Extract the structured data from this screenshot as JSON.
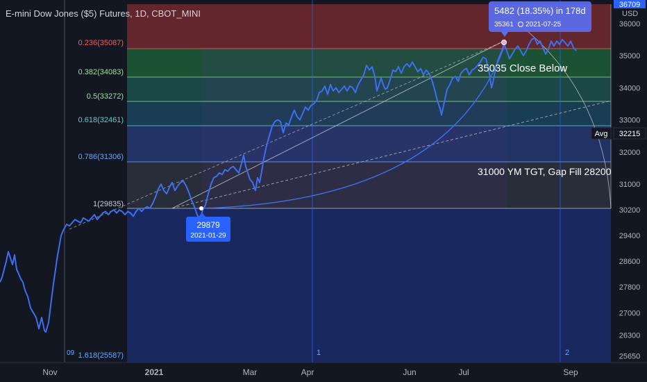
{
  "title": "E-mini Dow Jones ($5) Futures, 1D, CBOT_MINI",
  "currency": "USD",
  "colors": {
    "background": "#131722",
    "price_line": "#3d6ff0",
    "zone_red": "#8a2b30",
    "zone_green": "#1e6a3c",
    "zone_teal": "#1d5d61",
    "zone_blue": "#243e86",
    "zone_below": "#1a2a66",
    "fib_label_red": "#f0605a",
    "fib_label_green": "#9fe29a",
    "fib_label_teal": "#5bd1c8",
    "fib_label_blue": "#6aa7ff",
    "callout": "#2962ff"
  },
  "fib_levels": [
    {
      "ratio": "0.236",
      "price": 35087,
      "label": "0.236(35087)"
    },
    {
      "ratio": "0.382",
      "price": 34083,
      "label": "0.382(34083)"
    },
    {
      "ratio": "0.5",
      "price": 33272,
      "label": "0.5(33272)"
    },
    {
      "ratio": "0.618",
      "price": 32461,
      "label": "0.618(32461)"
    },
    {
      "ratio": "0.786",
      "price": 31306,
      "label": "0.786(31306)"
    },
    {
      "ratio": "1",
      "price": 29835,
      "label": "1(29835)"
    },
    {
      "ratio": "1.618",
      "price": 25587,
      "label": "1.618(25587)"
    }
  ],
  "annotations": {
    "close_below": "35035 Close Below",
    "target": "31000 YM TGT, Gap Fill 28200",
    "low_price": "29879",
    "low_date": "2021-01-29",
    "range_label": "5482 (18.35%) in 178d",
    "high_price": "35361",
    "high_date": "2021-07-25",
    "avg_label": "Avg",
    "avg_value": "32215",
    "top_price_badge": "36709",
    "marker_1": "1",
    "marker_2": "2",
    "marker_left": "09"
  },
  "chart_data": {
    "type": "line",
    "title": "E-mini Dow Jones ($5) Futures, 1D, CBOT_MINI",
    "y_ticks": [
      36000,
      35000,
      34000,
      33000,
      32000,
      31000,
      30200,
      29400,
      28600,
      27800,
      27000,
      26300,
      25650
    ],
    "ylim": [
      25450,
      36600
    ],
    "x_ticks": [
      "Nov",
      "2021",
      "Mar",
      "Apr",
      "Jun",
      "Jul",
      "Sep"
    ],
    "series": [
      {
        "values": [
          [
            0,
            27950
          ],
          [
            3,
            28100
          ],
          [
            6,
            28350
          ],
          [
            9,
            28600
          ],
          [
            12,
            28900
          ],
          [
            15,
            28700
          ],
          [
            18,
            28500
          ],
          [
            21,
            28800
          ],
          [
            24,
            28350
          ],
          [
            27,
            28200
          ],
          [
            30,
            28050
          ],
          [
            33,
            27950
          ],
          [
            36,
            27700
          ],
          [
            40,
            27500
          ],
          [
            44,
            27150
          ],
          [
            48,
            27000
          ],
          [
            52,
            26850
          ],
          [
            56,
            26500
          ],
          [
            60,
            26850
          ],
          [
            64,
            26450
          ],
          [
            66,
            26400
          ],
          [
            70,
            26700
          ],
          [
            74,
            27400
          ],
          [
            77,
            27900
          ],
          [
            80,
            28350
          ],
          [
            83,
            28800
          ],
          [
            86,
            29150
          ],
          [
            88,
            29400
          ],
          [
            92,
            29600
          ],
          [
            96,
            29750
          ],
          [
            100,
            29700
          ],
          [
            104,
            29800
          ],
          [
            108,
            29900
          ],
          [
            112,
            29850
          ],
          [
            116,
            29800
          ],
          [
            120,
            29950
          ],
          [
            124,
            29900
          ],
          [
            128,
            29850
          ],
          [
            132,
            29950
          ],
          [
            136,
            30050
          ],
          [
            140,
            29900
          ],
          [
            144,
            30000
          ],
          [
            148,
            30100
          ],
          [
            152,
            30150
          ],
          [
            156,
            30050
          ],
          [
            160,
            30150
          ],
          [
            164,
            30200
          ],
          [
            168,
            30100
          ],
          [
            172,
            30200
          ],
          [
            176,
            30150
          ],
          [
            180,
            30050
          ],
          [
            184,
            30150
          ],
          [
            188,
            30100
          ],
          [
            192,
            30000
          ],
          [
            196,
            30150
          ],
          [
            200,
            30250
          ],
          [
            204,
            30150
          ],
          [
            208,
            30250
          ],
          [
            212,
            30300
          ],
          [
            216,
            30250
          ],
          [
            220,
            30400
          ],
          [
            224,
            30600
          ],
          [
            228,
            30850
          ],
          [
            232,
            31000
          ],
          [
            236,
            30800
          ],
          [
            240,
            30700
          ],
          [
            244,
            30900
          ],
          [
            248,
            31050
          ],
          [
            252,
            30800
          ],
          [
            256,
            30950
          ],
          [
            260,
            31050
          ],
          [
            264,
            31100
          ],
          [
            268,
            30950
          ],
          [
            272,
            30750
          ],
          [
            276,
            30500
          ],
          [
            280,
            30300
          ],
          [
            284,
            30050
          ],
          [
            288,
            29879
          ],
          [
            292,
            30200
          ],
          [
            296,
            30350
          ],
          [
            300,
            30700
          ],
          [
            304,
            31000
          ],
          [
            308,
            31200
          ],
          [
            312,
            31250
          ],
          [
            316,
            31350
          ],
          [
            320,
            31300
          ],
          [
            324,
            31450
          ],
          [
            328,
            31400
          ],
          [
            332,
            31500
          ],
          [
            336,
            31550
          ],
          [
            340,
            31450
          ],
          [
            344,
            31350
          ],
          [
            348,
            31650
          ],
          [
            351,
            31900
          ],
          [
            354,
            31550
          ],
          [
            357,
            31350
          ],
          [
            360,
            31150
          ],
          [
            364,
            31050
          ],
          [
            368,
            30800
          ],
          [
            371,
            31200
          ],
          [
            374,
            31050
          ],
          [
            377,
            31400
          ],
          [
            380,
            31800
          ],
          [
            384,
            32200
          ],
          [
            388,
            32500
          ],
          [
            392,
            32800
          ],
          [
            396,
            32950
          ],
          [
            400,
            33000
          ],
          [
            404,
            32950
          ],
          [
            408,
            32600
          ],
          [
            412,
            32900
          ],
          [
            416,
            32850
          ],
          [
            420,
            33100
          ],
          [
            424,
            33300
          ],
          [
            428,
            33100
          ],
          [
            432,
            33000
          ],
          [
            436,
            33200
          ],
          [
            440,
            33400
          ],
          [
            444,
            33300
          ],
          [
            448,
            33450
          ],
          [
            452,
            33500
          ],
          [
            456,
            33600
          ],
          [
            460,
            33850
          ],
          [
            464,
            33900
          ],
          [
            468,
            34050
          ],
          [
            472,
            33800
          ],
          [
            476,
            34100
          ],
          [
            480,
            33900
          ],
          [
            484,
            34000
          ],
          [
            488,
            33850
          ],
          [
            492,
            33950
          ],
          [
            496,
            34050
          ],
          [
            500,
            33900
          ],
          [
            504,
            34050
          ],
          [
            508,
            34000
          ],
          [
            512,
            33850
          ],
          [
            516,
            34100
          ],
          [
            520,
            34250
          ],
          [
            524,
            34400
          ],
          [
            528,
            34700
          ],
          [
            532,
            34550
          ],
          [
            536,
            34650
          ],
          [
            540,
            34350
          ],
          [
            543,
            33900
          ],
          [
            546,
            34100
          ],
          [
            549,
            34300
          ],
          [
            552,
            34100
          ],
          [
            555,
            33950
          ],
          [
            558,
            34000
          ],
          [
            562,
            34250
          ],
          [
            566,
            34550
          ],
          [
            570,
            34500
          ],
          [
            574,
            34650
          ],
          [
            578,
            34450
          ],
          [
            582,
            34650
          ],
          [
            586,
            34750
          ],
          [
            590,
            34650
          ],
          [
            594,
            34800
          ],
          [
            598,
            34650
          ],
          [
            602,
            34500
          ],
          [
            606,
            34600
          ],
          [
            610,
            34400
          ],
          [
            614,
            34550
          ],
          [
            618,
            34450
          ],
          [
            622,
            34250
          ],
          [
            626,
            33950
          ],
          [
            630,
            33600
          ],
          [
            634,
            33350
          ],
          [
            636,
            33150
          ],
          [
            640,
            33550
          ],
          [
            644,
            33950
          ],
          [
            648,
            34100
          ],
          [
            652,
            34300
          ],
          [
            656,
            34350
          ],
          [
            660,
            34200
          ],
          [
            664,
            34450
          ],
          [
            668,
            34550
          ],
          [
            672,
            34600
          ],
          [
            676,
            34400
          ],
          [
            680,
            34550
          ],
          [
            684,
            34600
          ],
          [
            688,
            34700
          ],
          [
            692,
            34800
          ],
          [
            696,
            34950
          ],
          [
            700,
            34900
          ],
          [
            704,
            34550
          ],
          [
            706,
            34300
          ],
          [
            708,
            34000
          ],
          [
            710,
            34150
          ],
          [
            714,
            34600
          ],
          [
            718,
            34900
          ],
          [
            722,
            35100
          ],
          [
            726,
            35361
          ],
          [
            730,
            35150
          ],
          [
            734,
            34900
          ],
          [
            738,
            35050
          ],
          [
            742,
            35200
          ],
          [
            746,
            35300
          ],
          [
            750,
            35150
          ],
          [
            754,
            35000
          ],
          [
            758,
            35150
          ],
          [
            762,
            35350
          ],
          [
            766,
            35500
          ],
          [
            770,
            35550
          ],
          [
            774,
            35350
          ],
          [
            778,
            35450
          ],
          [
            782,
            35250
          ],
          [
            786,
            35050
          ],
          [
            790,
            35200
          ],
          [
            794,
            35450
          ],
          [
            798,
            35300
          ],
          [
            802,
            35450
          ],
          [
            806,
            35350
          ],
          [
            810,
            35500
          ],
          [
            814,
            35400
          ],
          [
            818,
            35300
          ],
          [
            822,
            35450
          ],
          [
            826,
            35250
          ],
          [
            830,
            35150
          ]
        ]
      }
    ]
  }
}
